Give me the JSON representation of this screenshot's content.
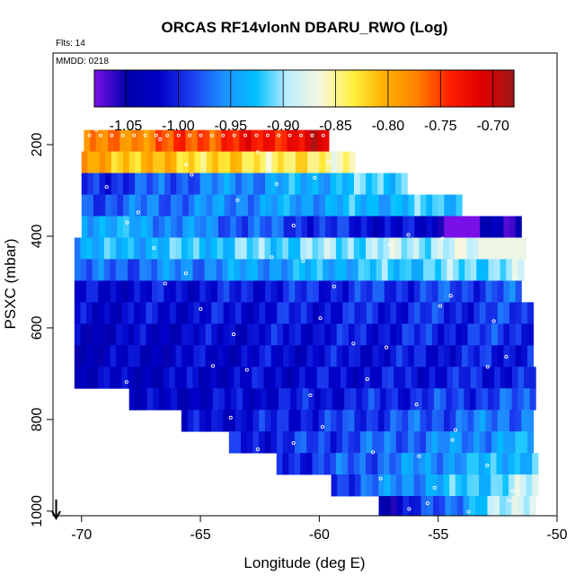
{
  "chart_data": {
    "type": "heatmap",
    "title": "ORCAS RF14vlonN DBARU_RWO (Log)",
    "flights_note": "Flts: 14",
    "date_note": "MMDD: 0218",
    "xlabel": "Longitude (deg E)",
    "ylabel": "PSXC (mbar)",
    "xlim": [
      -71.2,
      -50
    ],
    "ylim": [
      1010,
      0
    ],
    "y_reversed": true,
    "grid": false,
    "x_ticks": [
      -70,
      -65,
      -60,
      -55,
      -50
    ],
    "y_ticks": [
      200,
      400,
      600,
      800,
      1000
    ],
    "colorbar": {
      "range": [
        -1.08,
        -0.68
      ],
      "ticks": [
        -1.05,
        -1.0,
        -0.95,
        -0.9,
        -0.85,
        -0.8,
        -0.75,
        -0.7
      ],
      "tick_labels": [
        "-1.05",
        "-1.00",
        "-0.95",
        "-0.90",
        "-0.85",
        "-0.80",
        "-0.75",
        "-0.70"
      ],
      "colors": [
        "#7a10e8",
        "#0000aa",
        "#0000c8",
        "#1c3cf0",
        "#1e90ff",
        "#00bfff",
        "#bfefff",
        "#f8f8e0",
        "#ffef40",
        "#ffb000",
        "#ff8000",
        "#ff2000",
        "#e00000",
        "#a01818"
      ]
    },
    "rows": [
      {
        "p_top": 168,
        "p_bot": 215,
        "x0": -69.9,
        "x1": -59.6,
        "v0": -0.79,
        "v1": -0.71
      },
      {
        "p_top": 215,
        "p_bot": 262,
        "x0": -70.0,
        "x1": -58.5,
        "v0": -0.8,
        "v1": -0.85
      },
      {
        "p_top": 262,
        "p_bot": 309,
        "x0": -70.0,
        "x1": -56.3,
        "v0": -1.0,
        "v1": -0.91
      },
      {
        "p_top": 309,
        "p_bot": 356,
        "x0": -70.0,
        "x1": -54.0,
        "v0": -0.98,
        "v1": -0.92
      },
      {
        "p_top": 356,
        "p_bot": 403,
        "x0": -70.0,
        "x1": -51.5,
        "v0": -0.93,
        "v1": -1.05
      },
      {
        "p_top": 403,
        "p_bot": 450,
        "x0": -70.3,
        "x1": -51.3,
        "v0": -0.94,
        "v1": -0.88
      },
      {
        "p_top": 450,
        "p_bot": 497,
        "x0": -70.3,
        "x1": -51.4,
        "v0": -0.98,
        "v1": -0.9
      },
      {
        "p_top": 497,
        "p_bot": 544,
        "x0": -70.3,
        "x1": -51.5,
        "v0": -1.02,
        "v1": -0.98
      },
      {
        "p_top": 544,
        "p_bot": 591,
        "x0": -70.3,
        "x1": -51.0,
        "v0": -1.02,
        "v1": -0.99
      },
      {
        "p_top": 591,
        "p_bot": 638,
        "x0": -70.3,
        "x1": -51.0,
        "v0": -1.03,
        "v1": -0.99
      },
      {
        "p_top": 638,
        "p_bot": 685,
        "x0": -70.3,
        "x1": -51.0,
        "v0": -1.03,
        "v1": -1.0
      },
      {
        "p_top": 685,
        "p_bot": 732,
        "x0": -70.3,
        "x1": -50.9,
        "v0": -1.03,
        "v1": -1.0
      },
      {
        "p_top": 732,
        "p_bot": 779,
        "x0": -68.0,
        "x1": -50.9,
        "v0": -1.03,
        "v1": -0.98
      },
      {
        "p_top": 779,
        "p_bot": 826,
        "x0": -65.8,
        "x1": -51.0,
        "v0": -1.02,
        "v1": -0.96
      },
      {
        "p_top": 826,
        "p_bot": 873,
        "x0": -63.8,
        "x1": -51.0,
        "v0": -1.01,
        "v1": -0.94
      },
      {
        "p_top": 873,
        "p_bot": 920,
        "x0": -61.8,
        "x1": -50.8,
        "v0": -1.0,
        "v1": -0.92
      },
      {
        "p_top": 920,
        "p_bot": 967,
        "x0": -59.5,
        "x1": -50.8,
        "v0": -0.99,
        "v1": -0.89
      },
      {
        "p_top": 967,
        "p_bot": 1010,
        "x0": -57.5,
        "x1": -50.9,
        "v0": -1.05,
        "v1": -0.86
      }
    ]
  }
}
